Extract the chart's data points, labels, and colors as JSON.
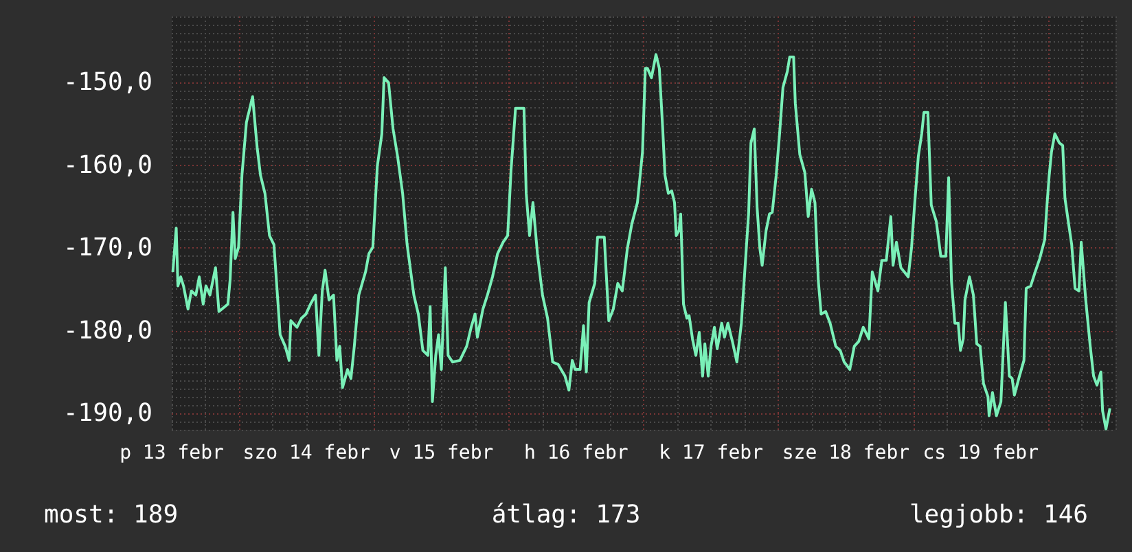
{
  "chart_data": {
    "type": "line",
    "grid": true,
    "xlim": [
      "--02-13T12:00",
      "--02-20T12:00"
    ],
    "ylim": [
      -192,
      -142
    ],
    "xticks": [
      {
        "value": "--02-13T12:00",
        "label": "p 13 febr"
      },
      {
        "value": "--02-14T12:00",
        "label": "szo 14 febr"
      },
      {
        "value": "--02-15T12:00",
        "label": "v 15 febr"
      },
      {
        "value": "--02-16T12:00",
        "label": "h 16 febr"
      },
      {
        "value": "--02-17T12:00",
        "label": "k 17 febr"
      },
      {
        "value": "--02-18T12:00",
        "label": "sze 18 febr"
      },
      {
        "value": "--02-19T12:00",
        "label": "cs 19 febr"
      }
    ],
    "yticks": [
      {
        "value": -150,
        "label": "-150,0"
      },
      {
        "value": -160,
        "label": "-160,0"
      },
      {
        "value": -170,
        "label": "-170,0"
      },
      {
        "value": -180,
        "label": "-180,0"
      },
      {
        "value": -190,
        "label": "-190,0"
      }
    ],
    "annotations": [
      "most: 189",
      "átlag: 173",
      "legjobb: 146"
    ],
    "x": [
      "--02-13T12:12",
      "--02-13T12:48",
      "--02-13T13:06",
      "--02-13T13:36",
      "--02-13T14:06",
      "--02-13T14:54",
      "--02-13T15:30",
      "--02-13T16:18",
      "--02-13T16:54",
      "--02-13T17:36",
      "--02-13T18:06",
      "--02-13T18:48",
      "--02-13T19:48",
      "--02-13T20:24",
      "--02-13T22:00",
      "--02-13T22:24",
      "--02-13T22:54",
      "--02-13T23:18",
      "--02-13T23:54",
      "--02-14T00:30",
      "--02-14T01:18",
      "--02-14T01:54",
      "--02-14T02:24",
      "--02-14T03:12",
      "--02-14T03:48",
      "--02-14T04:36",
      "--02-14T05:24",
      "--02-14T06:12",
      "--02-14T07:18",
      "--02-14T08:12",
      "--02-14T08:54",
      "--02-14T09:12",
      "--02-14T10:18",
      "--02-14T11:06",
      "--02-14T11:54",
      "--02-14T12:42",
      "--02-14T13:36",
      "--02-14T14:12",
      "--02-14T14:48",
      "--02-14T15:18",
      "--02-14T16:00",
      "--02-14T16:48",
      "--02-14T17:24",
      "--02-14T17:54",
      "--02-14T18:24",
      "--02-14T19:18",
      "--02-14T19:54",
      "--02-14T20:30",
      "--02-14T21:18",
      "--02-14T22:30",
      "--02-14T23:06",
      "--02-14T23:48",
      "--02-15T00:36",
      "--02-15T01:24",
      "--02-15T01:48",
      "--02-15T02:36",
      "--02-15T03:24",
      "--02-15T04:12",
      "--02-15T05:06",
      "--02-15T05:54",
      "--02-15T07:06",
      "--02-15T07:54",
      "--02-15T08:42",
      "--02-15T09:36",
      "--02-15T10:00",
      "--02-15T10:24",
      "--02-15T11:00",
      "--02-15T11:30",
      "--02-15T12:00",
      "--02-15T12:42",
      "--02-15T13:12",
      "--02-15T14:00",
      "--02-15T15:18",
      "--02-15T16:30",
      "--02-15T17:18",
      "--02-15T18:00",
      "--02-15T18:24",
      "--02-15T19:24",
      "--02-15T20:12",
      "--02-15T21:06",
      "--02-15T22:00",
      "--02-15T23:00",
      "--02-15T23:48",
      "--02-16T00:24",
      "--02-16T01:12",
      "--02-16T02:42",
      "--02-16T03:06",
      "--02-16T03:42",
      "--02-16T04:18",
      "--02-16T05:06",
      "--02-16T06:00",
      "--02-16T06:54",
      "--02-16T07:48",
      "--02-16T08:48",
      "--02-16T10:00",
      "--02-16T10:42",
      "--02-16T11:18",
      "--02-16T11:48",
      "--02-16T12:42",
      "--02-16T13:18",
      "--02-16T13:48",
      "--02-16T14:18",
      "--02-16T15:18",
      "--02-16T15:48",
      "--02-16T17:00",
      "--02-16T17:48",
      "--02-16T18:36",
      "--02-16T19:24",
      "--02-16T20:12",
      "--02-16T21:06",
      "--02-16T21:54",
      "--02-16T22:54",
      "--02-16T23:48",
      "--02-17T00:18",
      "--02-17T00:42",
      "--02-17T01:24",
      "--02-17T02:12",
      "--02-17T02:48",
      "--02-17T03:24",
      "--02-17T03:48",
      "--02-17T04:24",
      "--02-17T05:00",
      "--02-17T05:30",
      "--02-17T05:48",
      "--02-17T06:18",
      "--02-17T06:36",
      "--02-17T07:06",
      "--02-17T07:42",
      "--02-17T08:06",
      "--02-17T08:42",
      "--02-17T09:18",
      "--02-17T09:54",
      "--02-17T10:30",
      "--02-17T10:54",
      "--02-17T11:30",
      "--02-17T12:00",
      "--02-17T12:36",
      "--02-17T13:06",
      "--02-17T13:54",
      "--02-17T14:24",
      "--02-17T15:00",
      "--02-17T15:48",
      "--02-17T16:36",
      "--02-17T17:24",
      "--02-17T18:00",
      "--02-17T18:42",
      "--02-17T19:06",
      "--02-17T19:42",
      "--02-17T20:12",
      "--02-17T20:42",
      "--02-17T21:06",
      "--02-17T21:48",
      "--02-17T22:24",
      "--02-17T22:54",
      "--02-17T23:36",
      "--02-18T00:12",
      "--02-18T00:48",
      "--02-18T01:36",
      "--02-18T02:00",
      "--02-18T02:42",
      "--02-18T03:00",
      "--02-18T03:48",
      "--02-18T04:42",
      "--02-18T05:18",
      "--02-18T05:54",
      "--02-18T06:30",
      "--02-18T07:06",
      "--02-18T07:36",
      "--02-18T08:24",
      "--02-18T09:12",
      "--02-18T10:12",
      "--02-18T11:00",
      "--02-18T11:42",
      "--02-18T12:42",
      "--02-18T13:30",
      "--02-18T14:18",
      "--02-18T15:06",
      "--02-18T16:06",
      "--02-18T16:42",
      "--02-18T17:42",
      "--02-18T18:24",
      "--02-18T19:12",
      "--02-18T20:00",
      "--02-18T20:24",
      "--02-18T21:00",
      "--02-18T21:48",
      "--02-18T22:24",
      "--02-18T23:06",
      "--02-18T23:42",
      "--02-19T00:12",
      "--02-19T00:54",
      "--02-19T01:30",
      "--02-19T01:54",
      "--02-19T02:36",
      "--02-19T03:12",
      "--02-19T04:06",
      "--02-19T04:54",
      "--02-19T05:48",
      "--02-19T06:18",
      "--02-19T06:48",
      "--02-19T07:24",
      "--02-19T08:00",
      "--02-19T08:24",
      "--02-19T08:54",
      "--02-19T09:12",
      "--02-19T10:00",
      "--02-19T10:42",
      "--02-19T11:18",
      "--02-19T11:54",
      "--02-19T12:30",
      "--02-19T13:18",
      "--02-19T13:30",
      "--02-19T14:06",
      "--02-19T14:48",
      "--02-19T15:36",
      "--02-19T16:24",
      "--02-19T17:06",
      "--02-19T17:36",
      "--02-19T18:00",
      "--02-19T18:54",
      "--02-19T19:42",
      "--02-19T20:06",
      "--02-19T20:54",
      "--02-19T21:42",
      "--02-19T22:30",
      "--02-19T23:24",
      "--02-19T23:48",
      "--02-20T00:12",
      "--02-20T00:36",
      "--02-20T01:12",
      "--02-20T02:00",
      "--02-20T02:36",
      "--02-20T03:00",
      "--02-20T03:42",
      "--02-20T04:12",
      "--02-20T04:48",
      "--02-20T05:30",
      "--02-20T05:54",
      "--02-20T06:42",
      "--02-20T07:30",
      "--02-20T08:06",
      "--02-20T08:42",
      "--02-20T09:24",
      "--02-20T09:42",
      "--02-20T10:18",
      "--02-20T11:00"
    ],
    "series": [
      {
        "color": "#7af0b8",
        "values": [
          -172.9,
          -167.6,
          -174.6,
          -173.5,
          -174.6,
          -177.4,
          -175.2,
          -175.7,
          -173.5,
          -176.8,
          -174.6,
          -175.7,
          -172.4,
          -177.7,
          -176.8,
          -173.8,
          -165.7,
          -171.3,
          -169.9,
          -161.2,
          -154.8,
          -153.1,
          -151.7,
          -157.8,
          -161.2,
          -163.4,
          -168.5,
          -169.6,
          -180.5,
          -181.9,
          -183.6,
          -178.8,
          -179.6,
          -178.5,
          -178.0,
          -176.8,
          -175.7,
          -183.0,
          -175.2,
          -172.7,
          -176.3,
          -175.7,
          -183.6,
          -181.9,
          -186.9,
          -184.7,
          -185.8,
          -181.9,
          -175.7,
          -172.9,
          -170.7,
          -169.9,
          -160.1,
          -156.2,
          -149.4,
          -150.0,
          -155.6,
          -158.9,
          -163.4,
          -169.6,
          -175.7,
          -178.0,
          -182.4,
          -183.0,
          -177.1,
          -188.6,
          -183.0,
          -180.5,
          -184.7,
          -172.4,
          -183.0,
          -183.8,
          -183.6,
          -181.9,
          -179.6,
          -178.0,
          -180.8,
          -177.4,
          -175.7,
          -173.5,
          -170.7,
          -169.3,
          -168.5,
          -160.6,
          -153.1,
          -153.1,
          -163.4,
          -168.5,
          -164.5,
          -170.7,
          -175.7,
          -178.5,
          -183.8,
          -184.1,
          -185.5,
          -187.2,
          -183.6,
          -184.7,
          -184.7,
          -179.4,
          -185.0,
          -176.6,
          -174.3,
          -168.7,
          -168.7,
          -178.8,
          -177.4,
          -174.3,
          -175.2,
          -170.1,
          -167.1,
          -164.5,
          -158.4,
          -148.3,
          -148.3,
          -149.4,
          -146.6,
          -148.3,
          -155.6,
          -161.2,
          -163.4,
          -163.1,
          -164.5,
          -168.5,
          -167.9,
          -165.9,
          -176.8,
          -178.5,
          -178.2,
          -181.0,
          -183.0,
          -180.2,
          -185.5,
          -181.6,
          -185.5,
          -181.9,
          -179.6,
          -182.2,
          -179.1,
          -180.8,
          -179.1,
          -181.3,
          -183.8,
          -179.1,
          -172.9,
          -165.7,
          -157.3,
          -155.6,
          -165.1,
          -170.1,
          -172.1,
          -167.9,
          -165.9,
          -165.7,
          -161.2,
          -156.2,
          -150.6,
          -148.6,
          -146.9,
          -146.9,
          -152.5,
          -158.7,
          -160.9,
          -166.2,
          -162.9,
          -164.5,
          -174.0,
          -178.0,
          -177.7,
          -179.1,
          -181.9,
          -182.4,
          -183.8,
          -184.7,
          -181.9,
          -181.3,
          -179.6,
          -181.0,
          -172.9,
          -175.2,
          -171.5,
          -171.5,
          -166.2,
          -172.1,
          -169.3,
          -172.4,
          -172.9,
          -173.5,
          -169.9,
          -165.1,
          -158.9,
          -156.2,
          -153.6,
          -153.6,
          -164.8,
          -166.8,
          -171.0,
          -171.0,
          -161.5,
          -174.0,
          -179.1,
          -179.1,
          -182.4,
          -181.0,
          -176.3,
          -173.5,
          -175.7,
          -181.6,
          -181.9,
          -186.4,
          -188.0,
          -190.3,
          -187.5,
          -190.3,
          -188.6,
          -176.6,
          -185.5,
          -185.8,
          -187.8,
          -185.5,
          -183.6,
          -174.9,
          -174.6,
          -172.9,
          -171.3,
          -169.0,
          -164.8,
          -161.2,
          -158.4,
          -156.2,
          -157.3,
          -157.6,
          -164.0,
          -167.3,
          -169.6,
          -174.9,
          -175.2,
          -169.3,
          -176.3,
          -181.9,
          -185.5,
          -186.6,
          -185.0,
          -189.7,
          -191.9,
          -189.4
        ]
      }
    ]
  }
}
